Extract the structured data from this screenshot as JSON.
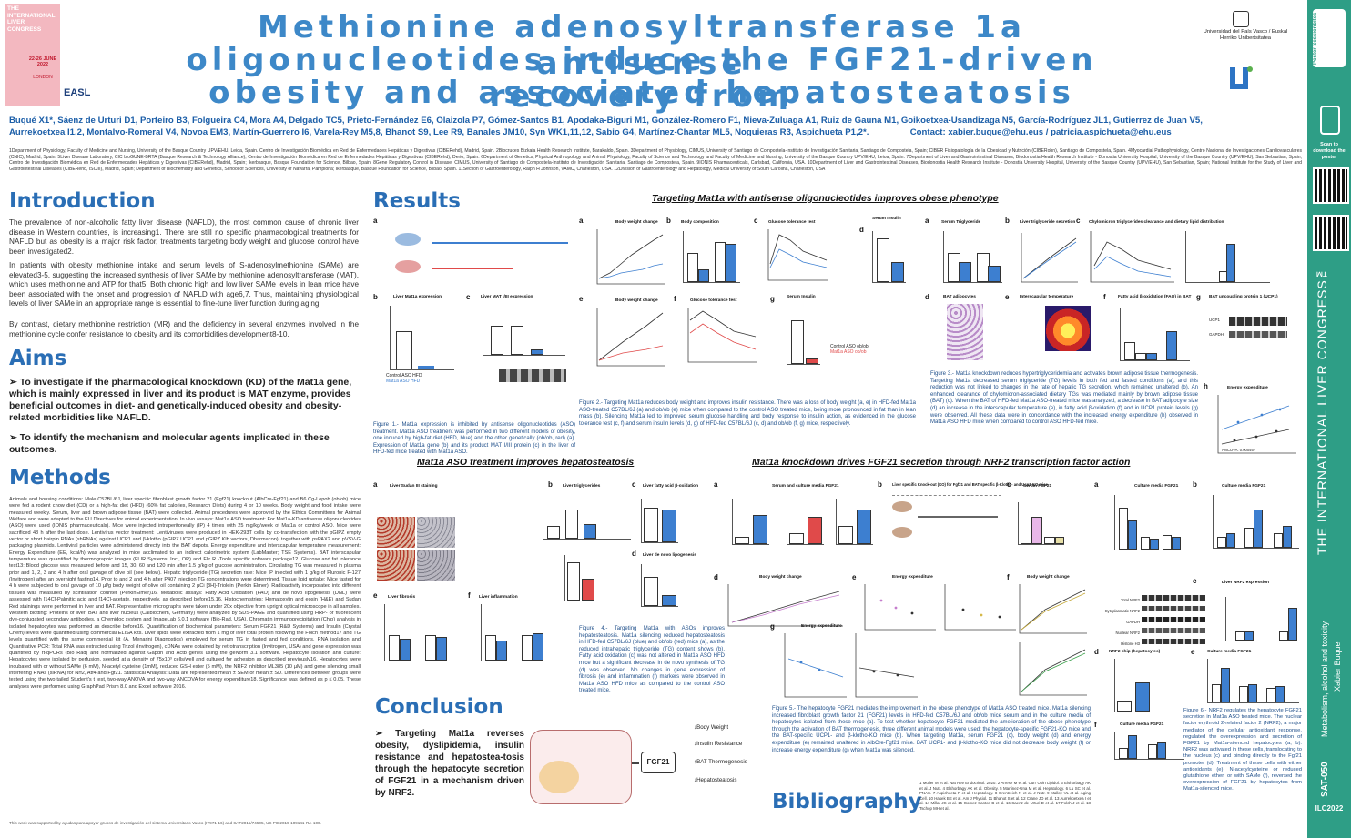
{
  "header": {
    "congress_logo_text": "THE INTERNATIONAL LIVER CONGRESS",
    "congress_date": "22-26 JUNE 2022",
    "congress_city": "LONDON",
    "easl_logo": "EASL",
    "title_lines": [
      "Methionine adenosyltransferase 1a antisense",
      "oligonucleotides induce the FGF21-driven recovery from",
      "obesity and associated hepatosteatosis"
    ],
    "university_logo": "Universidad del País Vasco / Euskal Herriko Unibertsitatea",
    "authors_line1": "Buqué X1*, Sáenz de Urturi D1, Porteiro B3, Folgueira C4, Mora A4, Delgado TC5, Prieto-Fernández E6, Olaizola P7, Gómez-Santos B1, Apodaka-Biguri M1, González-Romero F1, Nieva-Zuluaga A1, Ruiz de Gauna M1, Goikoetxea-Usandizaga N5, García-Rodríguez JL1, Gutierrez de Juan V5,",
    "authors_line2": "Aurrekoetxea I1,2, Montalvo-Romeral V4, Novoa EM3, Martín-Guerrero I6, Varela-Rey M5,8, Bhanot S9, Lee R9, Banales JM10, Syn WK1,11,12, Sabio G4, Martínez-Chantar ML5, Noguieras R3, Aspichueta P1,2*.",
    "contact_label": "Contact:",
    "contact_email_1": "xabier.buque@ehu.eus",
    "contact_sep": "/",
    "contact_email_2": "patricia.aspichueta@ehu.eus",
    "affiliations": "1Department of Physiology, Faculty of Medicine and Nursing, University of the Basque Country UPV/EHU, Leioa, Spain. Centro de Investigación Biomédica en Red de Enfermedades Hepáticas y Digestivas (CIBERehd), Madrid, Spain. 2Biocruces Bizkaia Health Research Institute, Barakaldo, Spain. 3Department of Physiology, CIMUS, University of Santiago de Compostela-Instituto de Investigación Sanitaria, Santiago de Compostela, Spain; CIBER Fisiopatología de la Obesidad y Nutrición (CIBERobn), Santiago de Compostela, Spain. 4Myocardial Pathophysiology, Centro Nacional de Investigaciones Cardiovasculares (CNIC), Madrid, Spain. 5Liver Disease Laboratory, CIC bioGUNE-BRTA (Basque Research & Technology Alliance), Centro de Investigación Biomédica en Red de Enfermedades Hepáticas y Digestivas (CIBERehd), Derio, Spain. 6Department of Genetics, Physical Anthropology and Animal Physiology, Faculty of Science and Technology and Faculty of Medicine and Nursing, University of the Basque Country UPV/EHU, Leioa, Spain. 7Department of Liver and Gastrointestinal Diseases, Biodonostia Health Research Institute - Donostia University Hospital, University of the Basque Country (UPV/EHU), San Sebastian, Spain; Centro de Investigación Biomédica en Red de Enfermedades Hepáticas y Digestivas (CIBERehd), Madrid, Spain; Ikerbasque, Basque Foundation for Science, Bilbao, Spain. 8Gene Regulatory Control in Disease, CIMUS, University of Santiago de Compostela-Instituto de Investigación Sanitaria, Santiago de Compostela, Spain. 9IONIS Pharmaceuticals, Carlsbad, California, USA. 10Department of Liver and Gastrointestinal Diseases, Biodonostia Health Research Institute - Donostia University Hospital, University of the Basque Country (UPV/EHU), San Sebastian, Spain; National Institute for the Study of Liver and Gastrointestinal Diseases (CIBERehd, ISCIII), Madrid, Spain; Department of Biochemistry and Genetics, School of Sciences, University of Navarra, Pamplona; Ikerbasque, Basque Foundation for Science, Bilbao, Spain. 11Section of Gastroenterology, Ralph H Johnson, VAMC, Charleston, USA. 12Division of Gastroenterology and Hepatology, Medical University of South Carolina, Charleston, USA"
  },
  "intro": {
    "heading": "Introduction",
    "p1": "The prevalence of non-alcoholic fatty liver disease (NAFLD), the most common cause of chronic liver disease in Western countries, is increasing1. There are still no specific pharmacological treatments for NAFLD but as obesity is a major risk factor, treatments targeting body weight and glucose control have been investigated2.",
    "p2": "In patients with obesity methionine intake and serum levels of S-adenosylmethionine (SAMe) are elevated3-5, suggesting the increased synthesis of liver SAMe by methionine adenosyltransferase (MAT), which uses methionine and ATP for that5. Both chronic high and low liver SAMe levels in lean mice have been associated with the onset and progression of NAFLD with age6,7. Thus, maintaining physiological levels of liver SAMe in an appropriate range is essential to fine-tune liver function during aging.",
    "p3": "By contrast, dietary methionine restriction (MR) and the deficiency in several enzymes involved in the methionine cycle confer resistance to obesity and its comorbidities development8-10."
  },
  "aims": {
    "heading": "Aims",
    "a1": "➢ To investigate if the pharmacological knockdown (KD) of the Mat1a gene, which is mainly expressed in liver and its product is MAT enzyme, provides beneficial outcomes in diet- and genetically-induced obesity and obesity-related morbidities like NAFLD.",
    "a2": "➢ To identify the mechanism and molecular agents implicated in these outcomes."
  },
  "methods": {
    "heading": "Methods",
    "text": "Animals and housing conditions: Male C57BL/6J, liver specific fibroblast growth factor 21 (Fgf21) knockout (AlbCre-Fgf21) and B6.Cg-Lepob (ob/ob) mice were fed a rodent chow diet (CD) or a high-fat diet (HFD) (60% fat calories, Research Diets) during 4 or 10 weeks. Body weight and food intake were measured weekly. Serum, liver and brown adipose tissue (BAT) were collected. Animal procedures were approved by the Ethics Committees for Animal Welfare and were adapted to the EU Directives for animal experimentation. In vivo assays: Mat1a ASO treatment: For Mat1a-KD antisense oligonucleotides (ASO) were used (IONIS pharmaceuticals). Mice were injected intraperitoneally (IP) 4 times with 25 mg/kg/week of Mat1a or control ASO. Mice were sacrificed 48 h after the last dose. Lentivirus vector treatment: Lentiviruses were produced in HEK-293T cells by co-transfection with the pGIPZ empty vector or short hairpin RNAs (shRNAs) against UCP1 and β-klotho (pGIPZ.UCP1 and pGIPZ.Klb vectors, Dharmacon), together with psPAX2 and pVSV-G packaging plasmids. Lentiviral particles were administered directly into the BAT depots. Energy expenditure and interscapular temperature measurement: Energy Expenditure (EE, kcal/h) was analyzed in mice acclimated to an indirect calorimetric system (LabMaster; TSE Systems). BAT interscapular temperature was quantified by thermographic images (FLIR Systems, Inc., OR) and Flir R -Tools specific software package12. Glucose and fat tolerance test13: Blood glucose was measured before and 15, 30, 60 and 120 min after 1.5 g/kg of glucose administration. Circulating TG was measured in plasma prior and 1, 2, 3 and 4 h after oral gavage of olive oil (see below). Hepatic triglyceride (TG) secretion rate: Mice IP injected with 1 g/kg of Pluronic F-127 (Invitrogen) after an overnight fasting14. Prior to and 2 and 4 h after P407 injection TG concentrations were determined. Tissue lipid uptake: Mice fasted for 4 h were subjected to oral gavage of 10 µl/g body weight of olive oil containing 2 µCi [3H]-Triolein (Perkin Elmer). Radioactivity incorporated into different tissues was measured by scintillation counter (PerkinElmer)16. Metabolic assays: Fatty Acid Oxidation (FAO) and de novo lipogenesis (DNL) were assessed with [14C]-Palmitic acid and [14C]-acetate, respectively, as described before15,16. Histochemistries: Hematoxylin and eosin (H&E) and Sudan Red stainings were performed in liver and BAT. Representative micrographs were taken under 20x objective from upright optical microscope in all samples. Western blotting: Proteins of liver, BAT and liver nucleus (Calbiochem, Germany) were analyzed by SDS-PAGE and quantified using HRP- or fluorescent dye-conjugated secondary antibodies, a Chemidoc system and ImageLab 6.0.1 software (Bio-Rad, USA). Chromatin immunoprecipitation (Chip) analysis in isolated hepatocytes was performed as describe before16. Quantification of biochemical parameters: Serum FGF21 (R&D Systems) and Insulin (Crystal Chem) levels were quantified using commercial ELISA kits. Liver lipids were extracted from 1 mg of liver total protein following the Folch method17 and TG levels quantified with the same commercial kit (A. Menarini Diagnostics) employed for serum TG in fasted and fed conditions. RNA isolation and Quantitative PCR: Total RNA was extracted using Trizol (Invitrogen), cDNAs were obtained by retrotranscription (Invitrogen, USA) and gene expression was quantified by rt-qPCRs (Bio Rad) and normalized against Gapdh and Actb genes using the geNorm 3.1 software. Hepatocyte isolation and culture: Hepatocytes were isolated by perfusion, seeded at a density of 75x10³ cells/well and cultured for adhesion as described previously16. Hepatocytes were incubated with or without SAMe (6 mM), N-acetyl cysteine (1mM), reduced GSH ester (5 mM), the NRF2 inhibitor ML385 (10 µM) and gene silencing small interfering RNAs (siRNA) for Nrf2, Atf4 and Fgf21. Statistical Analysis: Data are represented mean ± SEM or mean ± SD. Differences between groups were tested using the two tailed Student's t test, two-way ANOVA and two-way ANCOVA for energy expenditure18. Significance was defined as p ≤ 0.05. These analyses were performed using GraphPad Prism 8.0 and Excel software 2016.",
    "footer": "This work was supported by ayudas para apoyar grupos de investigación del sistema Universitario Vasco (IT971-16) and SAF2015/74505, US PID2019-109141-RA-100."
  },
  "results": {
    "heading": "Results",
    "subtitle_1": "Targeting Mat1a with antisense oligonucleotides improves obese phenotype",
    "fig1_caption": "Figure 1.- Mat1a expression is inhibited by antisense oligonucleotides (ASO) treatment. Mat1a ASO treatment was performed in two different models of obesity, one induced by high-fat diet (HFD, blue) and the other genetically (ob/ob, red) (a). Expression of Mat1a gene (b) and its product MAT I/III protein (c) in the liver of HFD-fed mice treated with Mat1a ASO.",
    "fig2_caption": "Figure 2.- Targeting Mat1a reduces body weight and improves insulin resistance. There was a loss of body weight (a, e) in HFD-fed Mat1a ASO-treated C57BL/6J (a) and ob/ob (e) mice when compared to the control ASO treated mice, being more pronounced in fat than in lean mass (b). Silencing Mat1a led to improved serum glucose handling and body response to insulin action, as evidenced in the glucose tolerance test (c, f) and serum insulin levels (d, g) of HFD-fed C57BL/6J (c, d) and ob/ob (f, g) mice, respectively.",
    "fig3_caption": "Figure 3.- Mat1a knockdown reduces hypertriglyceridemia and activates brown adipose tissue thermogenesis. Targeting Mat1a decreased serum triglyceride (TG) levels in both fed and fasted conditions (a), and this reduction was not linked to changes in the rate of hepatic TG secretion, which remained unaltered (b). An enhanced clearance of chylomicron-associated dietary TGs was mediated mainly by brown adipose tissue (BAT) (c). When the BAT of HFD-fed Mat1a ASO-treated mice was analyzed, a decrease in BAT adipocyte size (d) an increase in the interscapular temperature (e), in fatty acid β-oxidation (f) and in UCP1 protein levels (g) were observed. All these data were in concordance with the increased energy expenditure (h) observed in Mat1a ASO HFD mice when compared to control ASO HFD-fed mice.",
    "subtitle_2": "Mat1a ASO treatment improves hepatosteatosis",
    "fig4_caption": "Figure 4.- Targeting Mat1a with ASOs improves hepatosteatosis. Mat1a silencing reduced hepatosteatosis in HFD-fed C57BL/6J (blue) and ob/ob (red) mice (a), as the reduced intrahepatic triglyceride (TG) content shows (b). Fatty acid oxidation (c) was not altered in Mat1a ASO HFD mice but a significant decrease in de novo synthesis of TG (d) was observed. No changes in gene expression of fibrosis (e) and inflammation (f) markers were observed in Mat1a ASO HFD mice as compared to the control ASO treated mice.",
    "subtitle_3": "Mat1a knockdown drives FGF21 secretion through NRF2 transcription factor action",
    "fig5_caption": "Figure 5.- The hepatocyte FGF21 mediates the improvement in the obese phenotype of Mat1a ASO treated mice. Mat1a silencing increased fibroblast growth factor 21 (FGF21) levels in HFD-fed C57BL/6J and ob/ob mice serum and in the culture media of hepatocytes isolated from these mice (a). To test whether hepatocyte FGF21 mediated the amelioration of the obese phenotype through the activation of BAT thermogenesis, three different animal models were used: the hepatocyte-specific FGF21-KO mice and the BAT-specific UCP1- and β-klotho-KO mice (b). When targeting Mat1a, serum FGF21 (c), body weight (d) and energy expenditure (e) remained unaltered in AlbCre-Fgf21 mice. BAT UCP1- and β-klotho-KO mice did not decrease body weight (f) or increase energy expenditure (g) when Mat1a was silenced.",
    "fig6_caption": "Figure 6.- NRF2 regulates the hepatocyte FGF21 secretion in Mat1a ASO treated mice. The nuclear factor erythroid 2-related factor 2 (NRF2), a major mediator of the cellular antioxidant response, regulated the overexpression and secretion of FGF21 by Mat1a-silenced hepatocytes (a, b). NRF2 was activated in these cells, translocating to the nucleus (c) and binding directly to the Fgf21 promoter (d). Treatment of these cells with either antioxidants (e), N-acetylcysteine or reduced glutathione ether, or with SAMe (f), reversed the overexpression of FGF21 by hepatocytes from Mat1a-silenced mice.",
    "legend_control_aso_hfd": "Control ASO HFD",
    "legend_mat1a_aso_hfd": "Mat1a ASO HFD",
    "legend_control_aso_obob": "Control ASO ob/ob",
    "legend_mat1a_aso_obob": "Mat1a ASO ob/ob"
  },
  "figures": {
    "f1a_title": "a",
    "f1b_title": "Liver Mat1a expression",
    "f1c_title": "Liver MAT I/III expression",
    "f2a_title": "Body weight change",
    "f2b_title": "Body composition",
    "f2c_title": "Glucose tolerance test",
    "f2d_title": "Serum Insulin",
    "f2e_title": "Body weight change",
    "f2f_title": "Glucose tolerance test",
    "f2g_title": "Serum Insulin",
    "f3a_title": "Serum Triglyceride",
    "f3b_title": "Liver triglyceride secretion",
    "f3c_title": "Chylomicron triglycerides clearance and dietary lipid distribution",
    "f3d_title": "BAT adipocytes",
    "f3e_title": "Interscapular temperature",
    "f3f_title": "Fatty acid β-oxidation (FAO) in BAT",
    "f3g_title": "BAT uncoupling protein 1 (UCP1)",
    "f3h_title": "Energy expenditure",
    "f3h_stat": "ANCOVA: 0.000467",
    "f4a_title": "Liver Sudan III staining",
    "f4b_title": "Liver triglycerides",
    "f4c_title": "Liver fatty acid β-oxidation",
    "f4d_title": "Liver de novo lipogenesis",
    "f4e_title": "Liver fibrosis",
    "f4f_title": "Liver inflammation",
    "f5a_title": "Serum and culture media FGF21",
    "f5b_title": "Liver specific Knock-out (KO) for Fgf21 and BAT specific β-Klotho- and Ucp1-KO mice",
    "f5c_title": "Serum FGF21",
    "f5d_title": "Body weight change",
    "f5e_title": "Energy expenditure",
    "f5f_title": "Body weight change",
    "f5g_title": "Energy expenditure",
    "f6a_title": "Culture media FGF21",
    "f6b_title": "Culture media FGF21",
    "f6c_title": "Liver NRF2 expression",
    "f6d_title": "NRF2 chip (hepatocytes)",
    "f6e_title": "Culture media FGF21",
    "f6f_title": "Culture media FGF21",
    "f6c_rows": [
      "Total NRF2",
      "Cytoplasmatic NRF2",
      "GAPDH",
      "Nuclear NRF2",
      "Histone H3"
    ],
    "f3g_rows": [
      "UCP1",
      "GAPDH"
    ]
  },
  "conclusion": {
    "heading": "Conclusion",
    "text": "➢ Targeting Mat1a reverses obesity, dyslipidemia, insulin resistance and hepatostea-tosis through the hepatocyte secretion of FGF21 in a mechanism driven by NRF2.",
    "fgf21": "FGF21",
    "out1": "Body Weight",
    "out2": "Insulin Resistance",
    "out3": "BAT Thermogenesis",
    "out4": "Hepatosteatosis"
  },
  "bibliography": {
    "heading": "Bibliography",
    "text": "1 Muller M et al. Nat Rev Endocrinol. 2020. 2 Arrese M et al. Curr Opin Lipidol. 3 Elshorbagy AK et al. J Nutr. 4 Elshorbagy AK et al. Obesity. 5 Martinez-Una M et al. Hepatology. 6 Lu SC et al. PNAS. 7 Aspichueta P et al. Hepatology. 8 Orentreich N et al. J Nutr. 9 Malloy VL et al. Aging Cell. 10 Hasek BE et al. Am J Physiol. 11 Bhanot S et al. 12 Crane JD et al. 13 Aurrekoetxea I et al. 14 Millar JS et al. 15 Gomez-Santos B et al. 16 Saenz de Urturi D et al. 17 Folch J et al. 18 Tschop MH et al."
  },
  "sidebar": {
    "scan_text": "Scan to download the poster",
    "congress": "THE INTERNATIONAL LIVER CONGRESS™",
    "topic": "Metabolism, alcohol and toxicity",
    "author": "Xabier Buque",
    "code": "SAT-050",
    "badge": "ILC2022",
    "poster_brand": "Poster Sessionbites"
  },
  "colors": {
    "blue": "#3d7fd0",
    "red": "#e04a4a",
    "title": "#3d88c8",
    "sidebar": "#2e9e86"
  }
}
